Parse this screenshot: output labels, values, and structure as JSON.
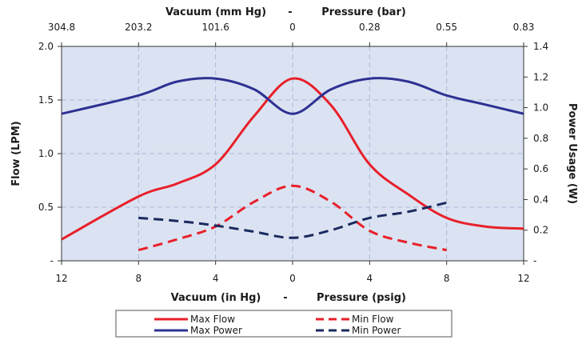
{
  "chart_data": {
    "type": "line",
    "top_axis": {
      "title_left": "Vacuum (mm Hg)",
      "title_sep": "-",
      "title_right": "Pressure (bar)",
      "ticks": [
        "304.8",
        "203.2",
        "101.6",
        "0",
        "0.28",
        "0.55",
        "0.83"
      ]
    },
    "bottom_axis": {
      "title_left": "Vacuum (in Hg)",
      "title_sep": "-",
      "title_right": "Pressure (psig)",
      "ticks": [
        "12",
        "8",
        "4",
        "0",
        "4",
        "8",
        "12"
      ],
      "range": [
        -12,
        12
      ]
    },
    "left_axis": {
      "title": "Flow (LPM)",
      "range": [
        0,
        2.0
      ],
      "ticks": [
        {
          "v": 0,
          "label": "-"
        },
        {
          "v": 0.5,
          "label": "0.5"
        },
        {
          "v": 1.0,
          "label": "1.0"
        },
        {
          "v": 1.5,
          "label": "1.5"
        },
        {
          "v": 2.0,
          "label": "2.0"
        }
      ]
    },
    "right_axis": {
      "title": "Power Usage  (W)",
      "range": [
        0,
        1.4
      ],
      "ticks": [
        {
          "v": 0,
          "label": "-"
        },
        {
          "v": 0.2,
          "label": "0.2"
        },
        {
          "v": 0.4,
          "label": "0.4"
        },
        {
          "v": 0.6,
          "label": "0.6"
        },
        {
          "v": 0.8,
          "label": "0.8"
        },
        {
          "v": 1.0,
          "label": "1.0"
        },
        {
          "v": 1.2,
          "label": "1.2"
        },
        {
          "v": 1.4,
          "label": "1.4"
        }
      ]
    },
    "grid": true,
    "legend_position": "bottom",
    "series": [
      {
        "name": "Max Flow",
        "axis": "left",
        "color": "#e8202a",
        "dash": false,
        "x": [
          -12,
          -8,
          -6,
          -4,
          -2,
          0,
          2,
          4,
          6,
          8,
          10,
          12
        ],
        "y": [
          0.2,
          0.6,
          0.72,
          0.9,
          1.35,
          1.7,
          1.45,
          0.9,
          0.62,
          0.4,
          0.32,
          0.3
        ]
      },
      {
        "name": "Max Power",
        "axis": "right",
        "color": "#2e3192",
        "dash": false,
        "x": [
          -12,
          -8,
          -6,
          -4,
          -2,
          0,
          2,
          4,
          6,
          8,
          10,
          12
        ],
        "y": [
          0.96,
          1.08,
          1.17,
          1.19,
          1.12,
          0.96,
          1.12,
          1.19,
          1.17,
          1.08,
          1.02,
          0.96
        ]
      },
      {
        "name": "Min Flow",
        "axis": "left",
        "color": "#e8202a",
        "dash": true,
        "x": [
          -8,
          -6,
          -4,
          -2,
          0,
          2,
          4,
          6,
          8
        ],
        "y": [
          0.1,
          0.2,
          0.32,
          0.55,
          0.7,
          0.55,
          0.28,
          0.17,
          0.1
        ]
      },
      {
        "name": "Min Power",
        "axis": "right",
        "color": "#1a2a5e",
        "dash": true,
        "x": [
          -8,
          -6,
          -4,
          -2,
          0,
          2,
          4,
          6,
          8
        ],
        "y": [
          0.28,
          0.26,
          0.23,
          0.19,
          0.15,
          0.2,
          0.28,
          0.32,
          0.38
        ]
      }
    ]
  }
}
